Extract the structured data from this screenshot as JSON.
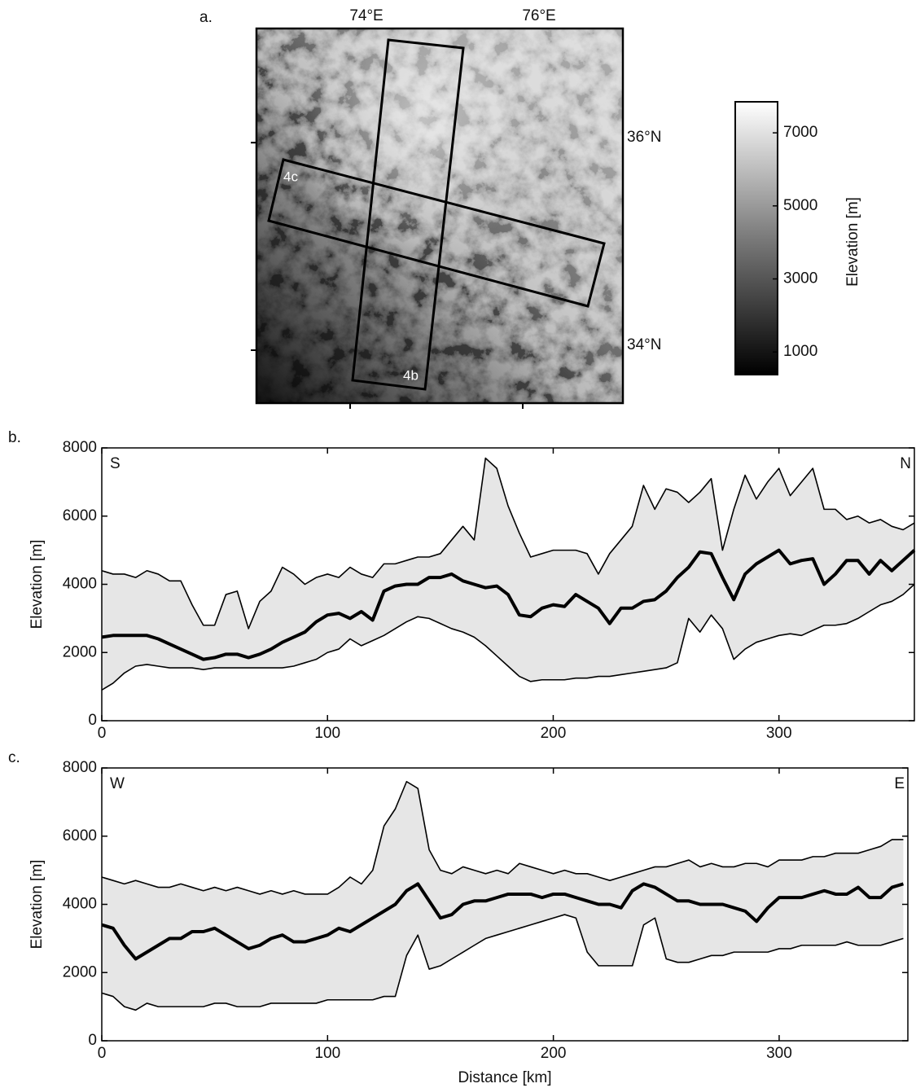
{
  "chart_data": [
    {
      "type": "map",
      "title": "a.",
      "xlim": [
        72.915,
        77.16
      ],
      "ylim": [
        33.49,
        37.1
      ],
      "xticks": [
        {
          "value": 74,
          "label": "74°E"
        },
        {
          "value": 76,
          "label": "76°E"
        }
      ],
      "yticks": [
        {
          "value": 34,
          "label": "34°N"
        },
        {
          "value": 36,
          "label": "36°N"
        }
      ],
      "annotations": [
        "4c",
        "4b"
      ],
      "colorbar": {
        "label": "Elevation [m]",
        "lim": [
          380,
          7850
        ],
        "ticks": [
          1000,
          3000,
          5000,
          7000
        ]
      }
    },
    {
      "type": "swath",
      "title": "b.",
      "ylabel": "Elevation [m]",
      "corner_labels": [
        "S",
        "N"
      ],
      "xlim": [
        0,
        360
      ],
      "xticks": [
        0,
        100,
        200,
        300
      ],
      "ylim": [
        0,
        8000
      ],
      "yticks": [
        0,
        2000,
        4000,
        6000,
        8000
      ],
      "band_color": "#e6e6e6",
      "x": [
        0,
        5,
        10,
        15,
        20,
        25,
        30,
        35,
        40,
        45,
        50,
        55,
        60,
        65,
        70,
        75,
        80,
        85,
        90,
        95,
        100,
        105,
        110,
        115,
        120,
        125,
        130,
        135,
        140,
        145,
        150,
        155,
        160,
        165,
        170,
        175,
        180,
        185,
        190,
        195,
        200,
        205,
        210,
        215,
        220,
        225,
        230,
        235,
        240,
        245,
        250,
        255,
        260,
        265,
        270,
        275,
        280,
        285,
        290,
        295,
        300,
        305,
        310,
        315,
        320,
        325,
        330,
        335,
        340,
        345,
        350,
        355,
        360
      ],
      "series": [
        {
          "color": "#000000",
          "line_width": 1.6,
          "values": [
            4400,
            4300,
            4300,
            4200,
            4400,
            4300,
            4100,
            4100,
            3400,
            2800,
            2800,
            3700,
            3800,
            2700,
            3500,
            3800,
            4500,
            4300,
            4000,
            4200,
            4300,
            4200,
            4500,
            4300,
            4200,
            4600,
            4600,
            4700,
            4800,
            4800,
            4900,
            5300,
            5700,
            5300,
            7700,
            7400,
            6300,
            5500,
            4800,
            4900,
            5000,
            5000,
            5000,
            4900,
            4300,
            4900,
            5300,
            5700,
            6900,
            6200,
            6800,
            6700,
            6400,
            6700,
            7100,
            5000,
            6200,
            7200,
            6500,
            7000,
            7400,
            6600,
            7000,
            7400,
            6200,
            6200,
            5900,
            6000,
            5800,
            5900,
            5700,
            5600,
            5800
          ]
        },
        {
          "color": "#000000",
          "line_width": 4,
          "values": [
            2450,
            2500,
            2500,
            2500,
            2500,
            2400,
            2250,
            2100,
            1950,
            1800,
            1850,
            1950,
            1950,
            1850,
            1950,
            2100,
            2300,
            2450,
            2600,
            2900,
            3100,
            3150,
            3000,
            3200,
            2950,
            3800,
            3950,
            4000,
            4000,
            4200,
            4200,
            4300,
            4100,
            4000,
            3900,
            3950,
            3700,
            3100,
            3050,
            3300,
            3400,
            3350,
            3700,
            3500,
            3300,
            2850,
            3300,
            3300,
            3500,
            3550,
            3800,
            4200,
            4500,
            4950,
            4900,
            4200,
            3550,
            4300,
            4600,
            4800,
            5000,
            4600,
            4700,
            4750,
            4000,
            4300,
            4700,
            4700,
            4300,
            4700,
            4400,
            4700,
            5000
          ]
        },
        {
          "color": "#000000",
          "line_width": 1.6,
          "values": [
            900,
            1100,
            1400,
            1600,
            1650,
            1600,
            1550,
            1550,
            1550,
            1500,
            1550,
            1550,
            1550,
            1550,
            1550,
            1550,
            1550,
            1600,
            1700,
            1800,
            2000,
            2100,
            2400,
            2200,
            2350,
            2500,
            2700,
            2900,
            3050,
            3000,
            2850,
            2700,
            2600,
            2450,
            2200,
            1900,
            1600,
            1300,
            1150,
            1200,
            1200,
            1200,
            1250,
            1250,
            1300,
            1300,
            1350,
            1400,
            1450,
            1500,
            1550,
            1700,
            3000,
            2600,
            3100,
            2700,
            1800,
            2100,
            2300,
            2400,
            2500,
            2550,
            2500,
            2650,
            2800,
            2800,
            2850,
            3000,
            3200,
            3400,
            3500,
            3700,
            4000
          ]
        }
      ]
    },
    {
      "type": "swath",
      "title": "c.",
      "ylabel": "Elevation [m]",
      "xlabel": "Distance [km]",
      "corner_labels": [
        "W",
        "E"
      ],
      "xlim": [
        0,
        357
      ],
      "xticks": [
        0,
        100,
        200,
        300
      ],
      "ylim": [
        0,
        8000
      ],
      "yticks": [
        0,
        2000,
        4000,
        6000,
        8000
      ],
      "band_color": "#e6e6e6",
      "x": [
        0,
        5,
        10,
        15,
        20,
        25,
        30,
        35,
        40,
        45,
        50,
        55,
        60,
        65,
        70,
        75,
        80,
        85,
        90,
        95,
        100,
        105,
        110,
        115,
        120,
        125,
        130,
        135,
        140,
        145,
        150,
        155,
        160,
        165,
        170,
        175,
        180,
        185,
        190,
        195,
        200,
        205,
        210,
        215,
        220,
        225,
        230,
        235,
        240,
        245,
        250,
        255,
        260,
        265,
        270,
        275,
        280,
        285,
        290,
        295,
        300,
        305,
        310,
        315,
        320,
        325,
        330,
        335,
        340,
        345,
        350,
        355
      ],
      "series": [
        {
          "color": "#000000",
          "line_width": 1.6,
          "values": [
            4800,
            4700,
            4600,
            4700,
            4600,
            4500,
            4500,
            4600,
            4500,
            4400,
            4500,
            4400,
            4500,
            4400,
            4300,
            4400,
            4300,
            4400,
            4300,
            4300,
            4300,
            4500,
            4800,
            4600,
            5000,
            6300,
            6800,
            7600,
            7400,
            5600,
            5000,
            4900,
            5100,
            5000,
            4900,
            5000,
            4900,
            5200,
            5100,
            5000,
            4900,
            5000,
            4900,
            4900,
            4800,
            4700,
            4800,
            4900,
            5000,
            5100,
            5100,
            5200,
            5300,
            5100,
            5200,
            5100,
            5100,
            5200,
            5200,
            5100,
            5300,
            5300,
            5300,
            5400,
            5400,
            5500,
            5500,
            5500,
            5600,
            5700,
            5900,
            5900
          ]
        },
        {
          "color": "#000000",
          "line_width": 4,
          "values": [
            3400,
            3300,
            2800,
            2400,
            2600,
            2800,
            3000,
            3000,
            3200,
            3200,
            3300,
            3100,
            2900,
            2700,
            2800,
            3000,
            3100,
            2900,
            2900,
            3000,
            3100,
            3300,
            3200,
            3400,
            3600,
            3800,
            4000,
            4400,
            4600,
            4100,
            3600,
            3700,
            4000,
            4100,
            4100,
            4200,
            4300,
            4300,
            4300,
            4200,
            4300,
            4300,
            4200,
            4100,
            4000,
            4000,
            3900,
            4400,
            4600,
            4500,
            4300,
            4100,
            4100,
            4000,
            4000,
            4000,
            3900,
            3800,
            3500,
            3900,
            4200,
            4200,
            4200,
            4300,
            4400,
            4300,
            4300,
            4500,
            4200,
            4200,
            4500,
            4600
          ]
        },
        {
          "color": "#000000",
          "line_width": 1.6,
          "values": [
            1400,
            1300,
            1000,
            900,
            1100,
            1000,
            1000,
            1000,
            1000,
            1000,
            1100,
            1100,
            1000,
            1000,
            1000,
            1100,
            1100,
            1100,
            1100,
            1100,
            1200,
            1200,
            1200,
            1200,
            1200,
            1300,
            1300,
            2500,
            3100,
            2100,
            2200,
            2400,
            2600,
            2800,
            3000,
            3100,
            3200,
            3300,
            3400,
            3500,
            3600,
            3700,
            3600,
            2600,
            2200,
            2200,
            2200,
            2200,
            3400,
            3600,
            2400,
            2300,
            2300,
            2400,
            2500,
            2500,
            2600,
            2600,
            2600,
            2600,
            2700,
            2700,
            2800,
            2800,
            2800,
            2800,
            2900,
            2800,
            2800,
            2800,
            2900,
            3000
          ]
        }
      ]
    }
  ]
}
